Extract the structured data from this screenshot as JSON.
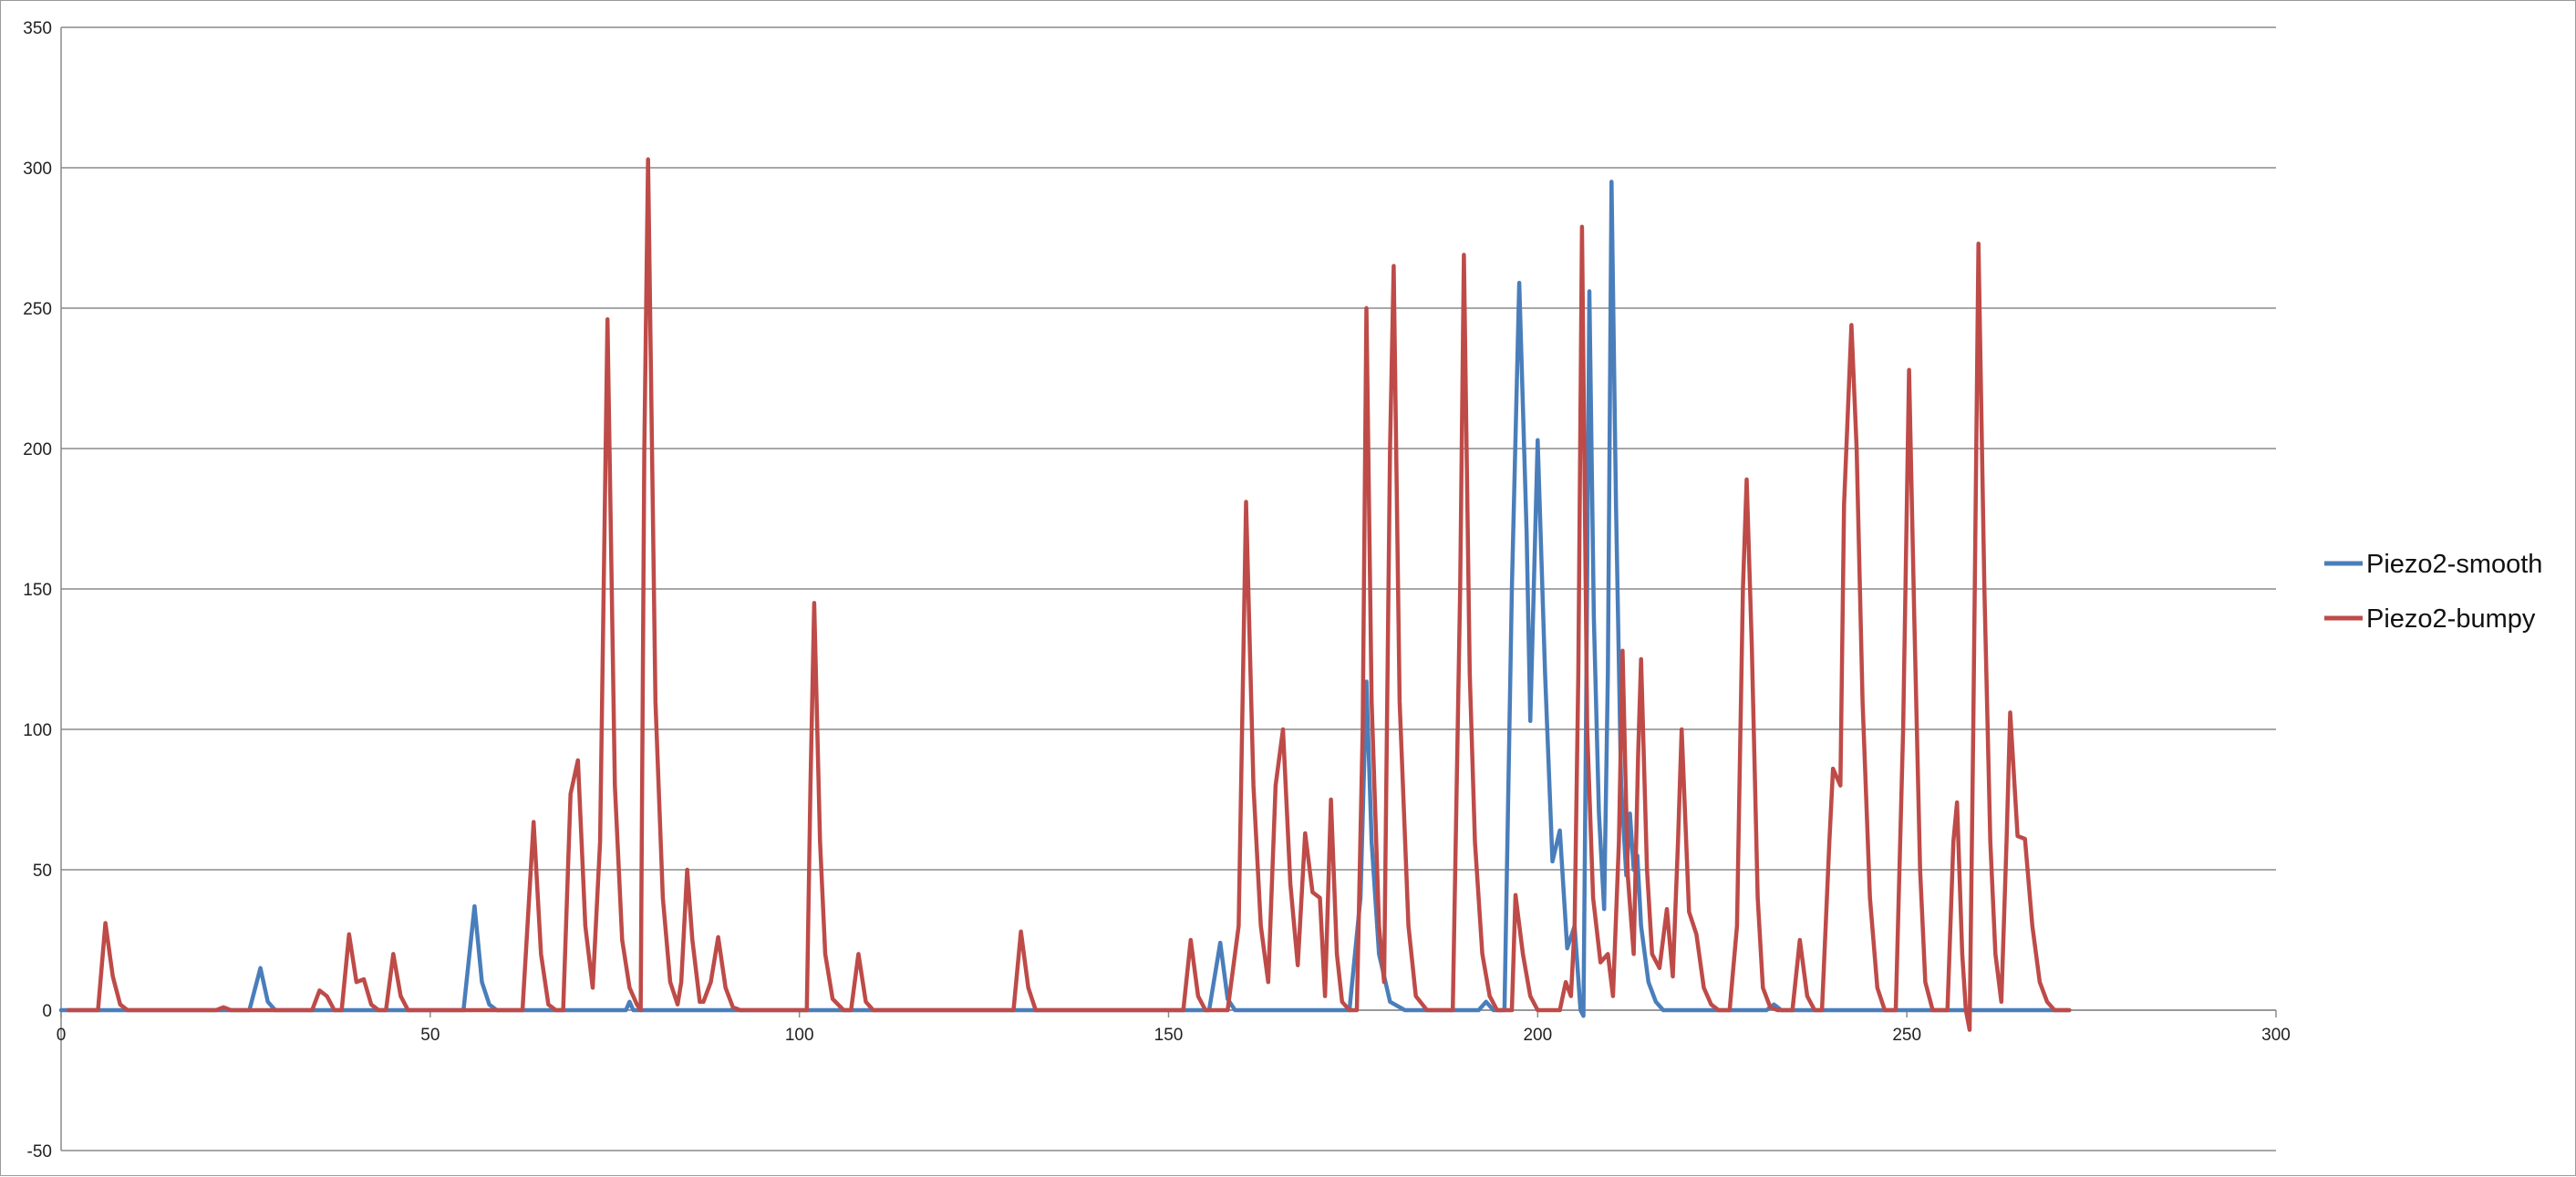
{
  "chart_data": {
    "type": "line",
    "title": "",
    "xlabel": "",
    "ylabel": "",
    "xlim": [
      0,
      300
    ],
    "ylim": [
      -50,
      350
    ],
    "x_ticks": [
      0,
      50,
      100,
      150,
      200,
      250,
      300
    ],
    "y_ticks": [
      -50,
      0,
      50,
      100,
      150,
      200,
      250,
      300,
      350
    ],
    "x_tick_labels": [
      "0",
      "50",
      "100",
      "150",
      "200",
      "250",
      "300"
    ],
    "y_tick_labels": [
      "-50",
      "0",
      "50",
      "100",
      "150",
      "200",
      "250",
      "300",
      "350"
    ],
    "grid": "horizontal",
    "legend_position": "right",
    "series": [
      {
        "name": "Piezo2-smooth",
        "color": "#4a7ebb",
        "points": [
          [
            0,
            0
          ],
          [
            25.5,
            0
          ],
          [
            27,
            15
          ],
          [
            28,
            3
          ],
          [
            29,
            0
          ],
          [
            54.5,
            0
          ],
          [
            56,
            37
          ],
          [
            57,
            10
          ],
          [
            58,
            2
          ],
          [
            59,
            0
          ],
          [
            76.5,
            0
          ],
          [
            77,
            3
          ],
          [
            77.5,
            0
          ],
          [
            155.5,
            0
          ],
          [
            157,
            24
          ],
          [
            158,
            4
          ],
          [
            159,
            0
          ],
          [
            174.5,
            0
          ],
          [
            176,
            40
          ],
          [
            176.8,
            117
          ],
          [
            177.5,
            60
          ],
          [
            178.5,
            20
          ],
          [
            180,
            3
          ],
          [
            182,
            0
          ],
          [
            192,
            0
          ],
          [
            193,
            3
          ],
          [
            194,
            0
          ],
          [
            195.5,
            0
          ],
          [
            196.5,
            150
          ],
          [
            197.5,
            259
          ],
          [
            198.5,
            170
          ],
          [
            199,
            103
          ],
          [
            200,
            203
          ],
          [
            201,
            120
          ],
          [
            202,
            53
          ],
          [
            203,
            64
          ],
          [
            204,
            22
          ],
          [
            205,
            30
          ],
          [
            205.8,
            0
          ],
          [
            206.2,
            -2
          ],
          [
            206.6,
            120
          ],
          [
            207,
            256
          ],
          [
            207.6,
            140
          ],
          [
            208.3,
            70
          ],
          [
            209,
            36
          ],
          [
            209.5,
            120
          ],
          [
            210,
            295
          ],
          [
            210.6,
            180
          ],
          [
            211.3,
            80
          ],
          [
            212,
            48
          ],
          [
            212.5,
            70
          ],
          [
            213,
            50
          ],
          [
            213.5,
            55
          ],
          [
            214,
            30
          ],
          [
            215,
            10
          ],
          [
            216,
            3
          ],
          [
            217,
            0
          ],
          [
            231,
            0
          ],
          [
            232,
            2
          ],
          [
            233,
            0
          ],
          [
            272,
            0
          ]
        ]
      },
      {
        "name": "Piezo2-bumpy",
        "color": "#be4b48",
        "points": [
          [
            1,
            0
          ],
          [
            5,
            0
          ],
          [
            6,
            31
          ],
          [
            7,
            12
          ],
          [
            8,
            2
          ],
          [
            9,
            0
          ],
          [
            21,
            0
          ],
          [
            22,
            1
          ],
          [
            23,
            0
          ],
          [
            34,
            0
          ],
          [
            35,
            7
          ],
          [
            36,
            5
          ],
          [
            37,
            0
          ],
          [
            38,
            0
          ],
          [
            39,
            27
          ],
          [
            40,
            10
          ],
          [
            41,
            11
          ],
          [
            42,
            2
          ],
          [
            43,
            0
          ],
          [
            44,
            0
          ],
          [
            45,
            20
          ],
          [
            46,
            5
          ],
          [
            47,
            0
          ],
          [
            62.5,
            0
          ],
          [
            64,
            67
          ],
          [
            65,
            20
          ],
          [
            66,
            2
          ],
          [
            67,
            0
          ],
          [
            68,
            0
          ],
          [
            69,
            77
          ],
          [
            70,
            89
          ],
          [
            71,
            30
          ],
          [
            72,
            8
          ],
          [
            73,
            60
          ],
          [
            74,
            246
          ],
          [
            75,
            80
          ],
          [
            76,
            25
          ],
          [
            77,
            8
          ],
          [
            78,
            2
          ],
          [
            78.5,
            0
          ],
          [
            79,
            200
          ],
          [
            79.5,
            303
          ],
          [
            80.5,
            110
          ],
          [
            81.5,
            40
          ],
          [
            82.5,
            10
          ],
          [
            83.5,
            2
          ],
          [
            84,
            10
          ],
          [
            84.8,
            50
          ],
          [
            85.5,
            25
          ],
          [
            86.5,
            3
          ],
          [
            87,
            3
          ],
          [
            88,
            10
          ],
          [
            89,
            26
          ],
          [
            90,
            8
          ],
          [
            91,
            1
          ],
          [
            92,
            0
          ],
          [
            101,
            0
          ],
          [
            101.5,
            80
          ],
          [
            102,
            145
          ],
          [
            102.8,
            60
          ],
          [
            103.5,
            20
          ],
          [
            104.5,
            4
          ],
          [
            106,
            0
          ],
          [
            107,
            0
          ],
          [
            108,
            20
          ],
          [
            109,
            3
          ],
          [
            110,
            0
          ],
          [
            129,
            0
          ],
          [
            130,
            28
          ],
          [
            131,
            8
          ],
          [
            132,
            0
          ],
          [
            152,
            0
          ],
          [
            153,
            25
          ],
          [
            154,
            5
          ],
          [
            155,
            0
          ],
          [
            158,
            0
          ],
          [
            159.5,
            30
          ],
          [
            160.5,
            181
          ],
          [
            161.5,
            80
          ],
          [
            162.5,
            30
          ],
          [
            163.5,
            10
          ],
          [
            164.5,
            80
          ],
          [
            165.5,
            100
          ],
          [
            166.5,
            45
          ],
          [
            167.5,
            16
          ],
          [
            168.5,
            63
          ],
          [
            169.5,
            42
          ],
          [
            170.5,
            40
          ],
          [
            171.2,
            5
          ],
          [
            172,
            75
          ],
          [
            172.8,
            20
          ],
          [
            173.5,
            3
          ],
          [
            174.5,
            0
          ],
          [
            175.5,
            0
          ],
          [
            176.3,
            100
          ],
          [
            176.8,
            250
          ],
          [
            177.5,
            110
          ],
          [
            178.5,
            30
          ],
          [
            179.2,
            10
          ],
          [
            180,
            200
          ],
          [
            180.5,
            265
          ],
          [
            181.3,
            110
          ],
          [
            182.5,
            30
          ],
          [
            183.5,
            5
          ],
          [
            185,
            0
          ],
          [
            188.5,
            0
          ],
          [
            189.5,
            150
          ],
          [
            190,
            269
          ],
          [
            190.8,
            120
          ],
          [
            191.5,
            60
          ],
          [
            192.5,
            20
          ],
          [
            193.5,
            5
          ],
          [
            194.5,
            0
          ],
          [
            196.5,
            0
          ],
          [
            197,
            41
          ],
          [
            198,
            20
          ],
          [
            199,
            5
          ],
          [
            200,
            0
          ],
          [
            203,
            0
          ],
          [
            203.8,
            10
          ],
          [
            204.5,
            5
          ],
          [
            205,
            30
          ],
          [
            205.5,
            120
          ],
          [
            206,
            279
          ],
          [
            206.7,
            100
          ],
          [
            207.5,
            40
          ],
          [
            208.5,
            17
          ],
          [
            209.5,
            20
          ],
          [
            210.2,
            5
          ],
          [
            211,
            60
          ],
          [
            211.5,
            128
          ],
          [
            212.2,
            48
          ],
          [
            213,
            20
          ],
          [
            213.6,
            90
          ],
          [
            214,
            125
          ],
          [
            214.8,
            50
          ],
          [
            215.5,
            20
          ],
          [
            216.5,
            15
          ],
          [
            217.5,
            36
          ],
          [
            218.3,
            12
          ],
          [
            219,
            60
          ],
          [
            219.5,
            100
          ],
          [
            220.5,
            35
          ],
          [
            221.5,
            27
          ],
          [
            222.5,
            8
          ],
          [
            223.5,
            2
          ],
          [
            224.5,
            0
          ],
          [
            226,
            0
          ],
          [
            227,
            30
          ],
          [
            227.8,
            150
          ],
          [
            228.3,
            189
          ],
          [
            229,
            130
          ],
          [
            229.8,
            40
          ],
          [
            230.5,
            8
          ],
          [
            231.5,
            1
          ],
          [
            232.5,
            0
          ],
          [
            234.5,
            0
          ],
          [
            235.5,
            25
          ],
          [
            236.5,
            5
          ],
          [
            237.5,
            0
          ],
          [
            238.5,
            0
          ],
          [
            239.5,
            60
          ],
          [
            240,
            86
          ],
          [
            241,
            80
          ],
          [
            241.5,
            180
          ],
          [
            242.5,
            244
          ],
          [
            243.2,
            200
          ],
          [
            244,
            110
          ],
          [
            245,
            40
          ],
          [
            246,
            8
          ],
          [
            247,
            0
          ],
          [
            248.5,
            0
          ],
          [
            249.5,
            100
          ],
          [
            250.3,
            228
          ],
          [
            251,
            140
          ],
          [
            251.8,
            50
          ],
          [
            252.5,
            10
          ],
          [
            253.5,
            0
          ],
          [
            255.5,
            0
          ],
          [
            256.3,
            60
          ],
          [
            256.8,
            74
          ],
          [
            257.5,
            20
          ],
          [
            258,
            0
          ],
          [
            258.5,
            -7
          ],
          [
            259,
            100
          ],
          [
            259.7,
            273
          ],
          [
            260.5,
            150
          ],
          [
            261.3,
            60
          ],
          [
            262,
            20
          ],
          [
            262.8,
            3
          ],
          [
            263.5,
            60
          ],
          [
            264,
            106
          ],
          [
            265,
            62
          ],
          [
            266,
            61
          ],
          [
            267,
            30
          ],
          [
            268,
            10
          ],
          [
            269,
            3
          ],
          [
            270,
            0
          ],
          [
            272,
            0
          ]
        ]
      }
    ]
  },
  "legend": {
    "items": [
      {
        "label": "Piezo2-smooth",
        "color": "#4a7ebb"
      },
      {
        "label": "Piezo2-bumpy",
        "color": "#be4b48"
      }
    ]
  }
}
